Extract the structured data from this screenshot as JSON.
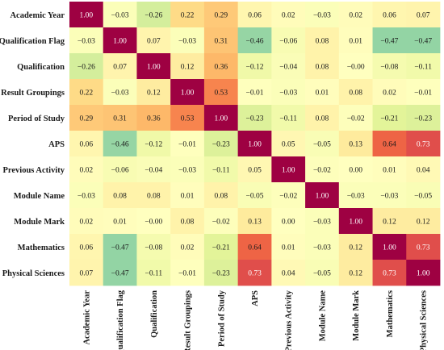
{
  "chart_data": {
    "type": "heatmap",
    "title": "",
    "xlabel": "",
    "ylabel": "",
    "value_range": [
      -1,
      1
    ],
    "colormap": "Spectral_r",
    "colorbar": "none visible",
    "row_labels": [
      "Academic Year",
      "Qualification Flag",
      "Qualification",
      "Result Groupings",
      "Period of Study",
      "APS",
      "Previous Activity",
      "Module Name",
      "Module Mark",
      "Mathematics",
      "Physical Sciences"
    ],
    "col_labels": [
      "Academic Year",
      "Qualification Flag",
      "Qualification",
      "Result Groupings",
      "Period of Study",
      "APS",
      "Previous Activity",
      "Module Name",
      "Module Mark",
      "Mathematics",
      "Physical Sciences"
    ],
    "values": [
      [
        1.0,
        -0.03,
        -0.26,
        0.22,
        0.29,
        0.06,
        0.02,
        -0.03,
        0.02,
        0.06,
        0.07
      ],
      [
        -0.03,
        1.0,
        0.07,
        -0.03,
        0.31,
        -0.46,
        -0.06,
        0.08,
        0.01,
        -0.47,
        -0.47
      ],
      [
        -0.26,
        0.07,
        1.0,
        0.12,
        0.36,
        -0.12,
        -0.04,
        0.08,
        -0.0,
        -0.08,
        -0.11
      ],
      [
        0.22,
        -0.03,
        0.12,
        1.0,
        0.53,
        -0.01,
        -0.03,
        0.01,
        0.08,
        0.02,
        -0.01
      ],
      [
        0.29,
        0.31,
        0.36,
        0.53,
        1.0,
        -0.23,
        -0.11,
        0.08,
        -0.02,
        -0.21,
        -0.23
      ],
      [
        0.06,
        -0.46,
        -0.12,
        -0.01,
        -0.23,
        1.0,
        0.05,
        -0.05,
        0.13,
        0.64,
        0.73
      ],
      [
        0.02,
        -0.06,
        -0.04,
        -0.03,
        -0.11,
        0.05,
        1.0,
        -0.02,
        0.0,
        0.01,
        0.04
      ],
      [
        -0.03,
        0.08,
        0.08,
        0.01,
        0.08,
        -0.05,
        -0.02,
        1.0,
        -0.03,
        -0.03,
        -0.05
      ],
      [
        0.02,
        0.01,
        -0.0,
        0.08,
        -0.02,
        0.13,
        0.0,
        -0.03,
        1.0,
        0.12,
        0.12
      ],
      [
        0.06,
        -0.47,
        -0.08,
        0.02,
        -0.21,
        0.64,
        0.01,
        -0.03,
        0.12,
        1.0,
        0.73
      ],
      [
        0.07,
        -0.47,
        -0.11,
        -0.01,
        -0.23,
        0.73,
        0.04,
        -0.05,
        0.12,
        0.73,
        1.0
      ]
    ]
  }
}
